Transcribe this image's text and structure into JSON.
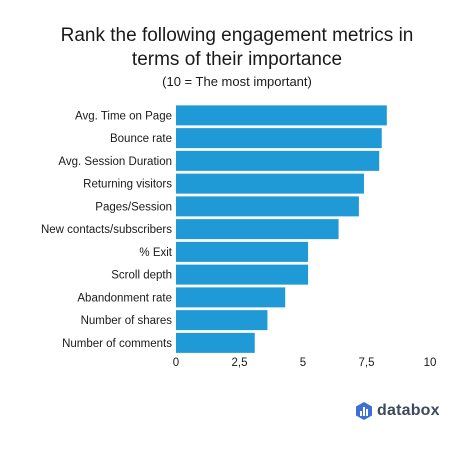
{
  "header": {
    "title_line1": "Rank the following engagement metrics in",
    "title_line2": "terms of their importance",
    "subtitle": "(10 = The most important)"
  },
  "brand": {
    "name": "databox",
    "logo_icon": "databox-logo-icon",
    "color": "#3d4a5c"
  },
  "chart_data": {
    "type": "bar",
    "orientation": "horizontal",
    "title": "Rank the following engagement metrics in terms of their importance",
    "subtitle": "(10 = The most important)",
    "categories": [
      "Avg. Time on Page",
      "Bounce rate",
      "Avg. Session Duration",
      "Returning visitors",
      "Pages/Session",
      "New contacts/subscribers",
      "% Exit",
      "Scroll depth",
      "Abandonment rate",
      "Number of shares",
      "Number of comments"
    ],
    "values": [
      8.3,
      8.1,
      8.0,
      7.4,
      7.2,
      6.4,
      5.2,
      5.2,
      4.3,
      3.6,
      3.1
    ],
    "xlim": [
      0,
      10
    ],
    "xticks": [
      "0",
      "2,5",
      "5",
      "7,5",
      "10"
    ],
    "xtick_values": [
      0,
      2.5,
      5,
      7.5,
      10
    ],
    "bar_color": "#1f9ad6",
    "grid": false,
    "legend": "none",
    "xlabel": "",
    "ylabel": ""
  }
}
